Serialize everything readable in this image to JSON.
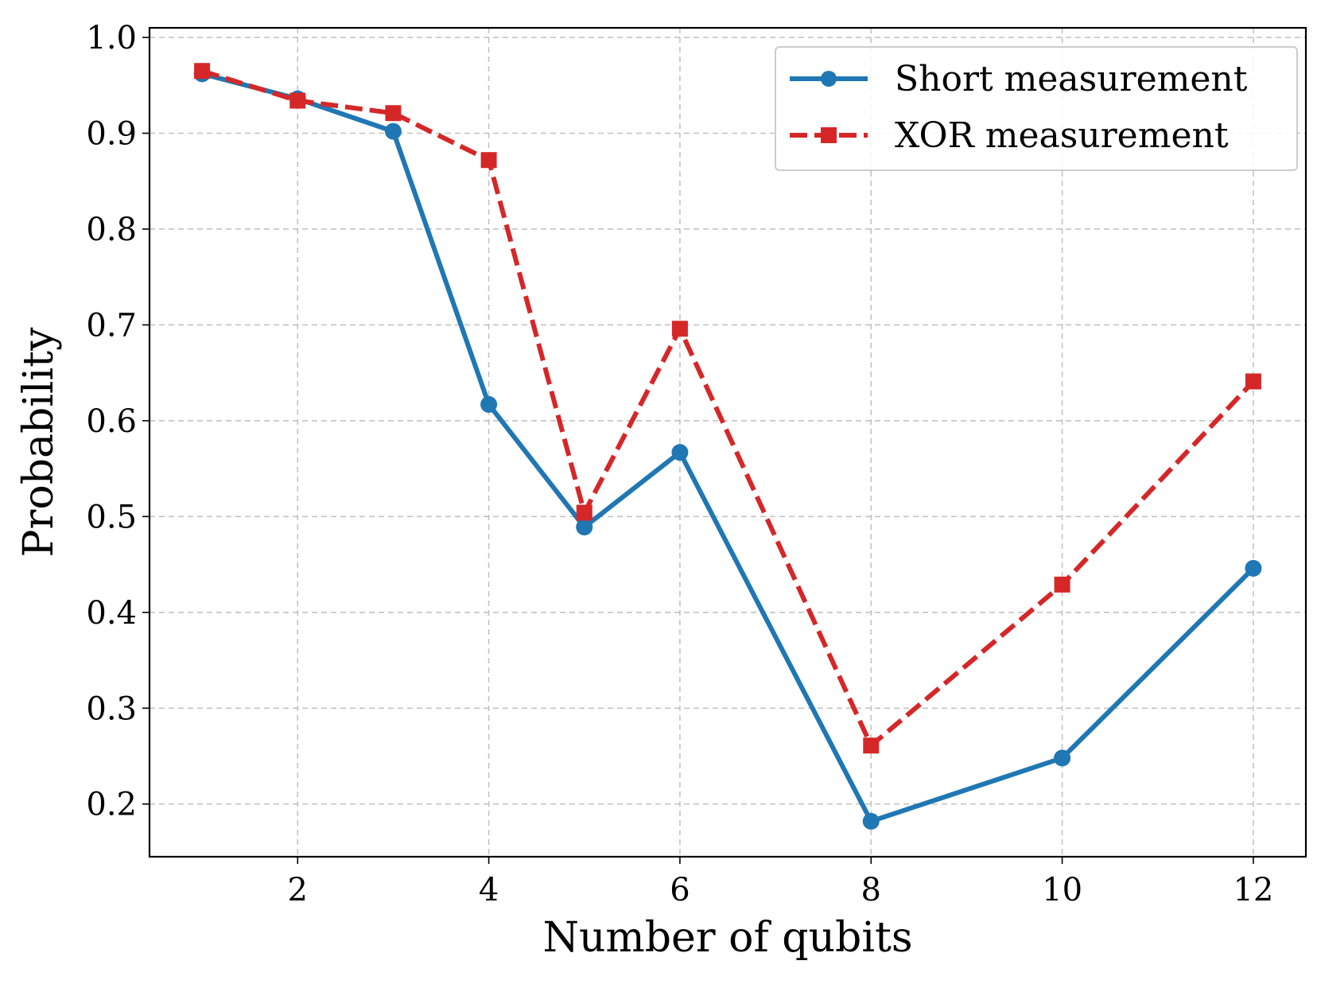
{
  "chart_data": {
    "type": "line",
    "xlabel": "Number of qubits",
    "ylabel": "Probability",
    "xlim": [
      0.45,
      12.55
    ],
    "ylim": [
      0.145,
      1.01
    ],
    "x_ticks": [
      2,
      4,
      6,
      8,
      10,
      12
    ],
    "y_ticks": [
      0.2,
      0.3,
      0.4,
      0.5,
      0.6,
      0.7,
      0.8,
      0.9,
      1.0
    ],
    "y_tick_labels": [
      "0.2",
      "0.3",
      "0.4",
      "0.5",
      "0.6",
      "0.7",
      "0.8",
      "0.9",
      "1.0"
    ],
    "x_tick_labels": [
      "2",
      "4",
      "6",
      "8",
      "10",
      "12"
    ],
    "grid": true,
    "legend_position": "top-right",
    "series": [
      {
        "name": "Short measurement",
        "color": "#1f77b4",
        "line_style": "solid",
        "marker": "circle",
        "x": [
          1,
          2,
          3,
          4,
          5,
          6,
          8,
          10,
          12
        ],
        "y": [
          0.962,
          0.936,
          0.902,
          0.617,
          0.489,
          0.567,
          0.182,
          0.248,
          0.446
        ]
      },
      {
        "name": "XOR measurement",
        "color": "#d62728",
        "line_style": "dashed",
        "marker": "square",
        "x": [
          1,
          2,
          3,
          4,
          5,
          6,
          8,
          10,
          12
        ],
        "y": [
          0.965,
          0.934,
          0.921,
          0.872,
          0.504,
          0.696,
          0.261,
          0.429,
          0.641
        ]
      }
    ]
  }
}
